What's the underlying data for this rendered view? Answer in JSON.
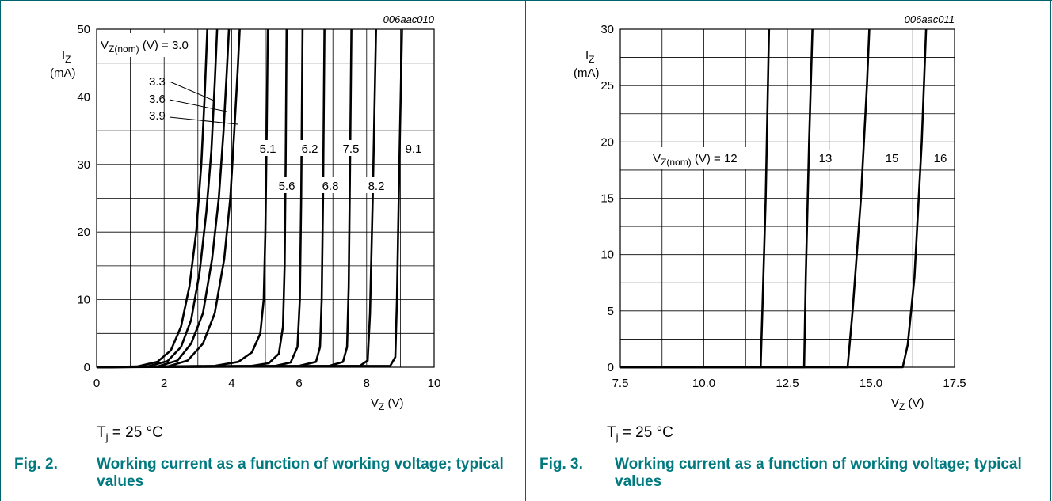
{
  "figures": [
    {
      "code": "006aac010",
      "ylabel": "I",
      "ylabel_sub": "Z",
      "yunit": "(mA)",
      "xlabel": "V",
      "xlabel_sub": "Z",
      "xunit": "(V)",
      "yticks": [
        "0",
        "10",
        "20",
        "30",
        "40",
        "50"
      ],
      "xticks": [
        "0",
        "2",
        "4",
        "6",
        "8",
        "10"
      ],
      "series_label_main": "V",
      "series_label_sub": "Z(nom)",
      "series_label_rest": " (V) = 3.0",
      "curve_labels": [
        "3.3",
        "3.6",
        "3.9",
        "5.1",
        "5.6",
        "6.2",
        "6.8",
        "7.5",
        "8.2",
        "9.1"
      ],
      "condition": "T",
      "condition_sub": "j",
      "condition_rest": " = 25 °C",
      "caption_num": "Fig. 2.",
      "caption_title": "Working current as a function of working voltage; typical values"
    },
    {
      "code": "006aac011",
      "ylabel": "I",
      "ylabel_sub": "Z",
      "yunit": "(mA)",
      "xlabel": "V",
      "xlabel_sub": "Z",
      "xunit": "(V)",
      "yticks": [
        "0",
        "5",
        "10",
        "15",
        "20",
        "25",
        "30"
      ],
      "xticks": [
        "7.5",
        "10.0",
        "12.5",
        "15.0",
        "17.5"
      ],
      "series_label_main": "V",
      "series_label_sub": "Z(nom)",
      "series_label_rest": " (V) = 12",
      "curve_labels": [
        "13",
        "15",
        "16"
      ],
      "condition": "T",
      "condition_sub": "j",
      "condition_rest": " = 25 °C",
      "caption_num": "Fig. 3.",
      "caption_title": "Working current as a function of working voltage; typical values"
    }
  ],
  "chart_data": [
    {
      "type": "line",
      "xlabel": "VZ (V)",
      "ylabel": "IZ (mA)",
      "xlim": [
        0,
        10
      ],
      "ylim": [
        0,
        50
      ],
      "grid": true,
      "series": [
        {
          "name": "3.0",
          "points": [
            [
              0,
              0
            ],
            [
              1.2,
              0.1
            ],
            [
              1.8,
              0.8
            ],
            [
              2.2,
              2.5
            ],
            [
              2.5,
              6
            ],
            [
              2.75,
              12
            ],
            [
              2.95,
              20
            ],
            [
              3.1,
              30
            ],
            [
              3.2,
              40
            ],
            [
              3.28,
              50
            ]
          ]
        },
        {
          "name": "3.3",
          "points": [
            [
              0,
              0
            ],
            [
              1.5,
              0.1
            ],
            [
              2.1,
              0.9
            ],
            [
              2.5,
              3
            ],
            [
              2.8,
              7
            ],
            [
              3.05,
              14
            ],
            [
              3.25,
              23
            ],
            [
              3.4,
              32
            ],
            [
              3.5,
              42
            ],
            [
              3.57,
              50
            ]
          ]
        },
        {
          "name": "3.6",
          "points": [
            [
              0,
              0
            ],
            [
              1.8,
              0.1
            ],
            [
              2.4,
              1
            ],
            [
              2.8,
              3.5
            ],
            [
              3.15,
              8
            ],
            [
              3.42,
              16
            ],
            [
              3.62,
              25
            ],
            [
              3.76,
              35
            ],
            [
              3.86,
              44
            ],
            [
              3.92,
              50
            ]
          ]
        },
        {
          "name": "3.9",
          "points": [
            [
              0,
              0
            ],
            [
              2.1,
              0.1
            ],
            [
              2.7,
              1
            ],
            [
              3.15,
              3.5
            ],
            [
              3.5,
              8
            ],
            [
              3.78,
              16
            ],
            [
              3.96,
              25
            ],
            [
              4.08,
              35
            ],
            [
              4.18,
              44
            ],
            [
              4.24,
              50
            ]
          ]
        },
        {
          "name": "5.1",
          "points": [
            [
              0,
              0
            ],
            [
              3.5,
              0.2
            ],
            [
              4.2,
              0.8
            ],
            [
              4.6,
              2.2
            ],
            [
              4.85,
              5
            ],
            [
              4.95,
              10
            ],
            [
              5.0,
              20
            ],
            [
              5.04,
              35
            ],
            [
              5.07,
              50
            ]
          ]
        },
        {
          "name": "5.6",
          "points": [
            [
              0,
              0
            ],
            [
              4.6,
              0.2
            ],
            [
              5.1,
              0.6
            ],
            [
              5.4,
              2
            ],
            [
              5.52,
              6
            ],
            [
              5.57,
              15
            ],
            [
              5.6,
              30
            ],
            [
              5.63,
              50
            ]
          ]
        },
        {
          "name": "6.2",
          "points": [
            [
              0,
              0
            ],
            [
              5.3,
              0.2
            ],
            [
              5.75,
              0.7
            ],
            [
              5.95,
              3
            ],
            [
              6.02,
              10
            ],
            [
              6.06,
              25
            ],
            [
              6.1,
              50
            ]
          ]
        },
        {
          "name": "6.8",
          "points": [
            [
              0,
              0
            ],
            [
              6.0,
              0.2
            ],
            [
              6.5,
              0.8
            ],
            [
              6.62,
              3
            ],
            [
              6.67,
              10
            ],
            [
              6.71,
              25
            ],
            [
              6.75,
              50
            ]
          ]
        },
        {
          "name": "7.5",
          "points": [
            [
              0,
              0
            ],
            [
              6.9,
              0.2
            ],
            [
              7.3,
              0.8
            ],
            [
              7.42,
              3
            ],
            [
              7.47,
              12
            ],
            [
              7.51,
              30
            ],
            [
              7.55,
              50
            ]
          ]
        },
        {
          "name": "8.2",
          "points": [
            [
              0,
              0
            ],
            [
              7.8,
              0.2
            ],
            [
              8.03,
              1
            ],
            [
              8.1,
              8
            ],
            [
              8.18,
              25
            ],
            [
              8.28,
              50
            ]
          ]
        },
        {
          "name": "9.1",
          "points": [
            [
              0,
              0
            ],
            [
              8.7,
              0.2
            ],
            [
              8.85,
              1.5
            ],
            [
              8.9,
              10
            ],
            [
              8.97,
              30
            ],
            [
              9.05,
              50
            ]
          ]
        }
      ]
    },
    {
      "type": "line",
      "xlabel": "VZ (V)",
      "ylabel": "IZ (mA)",
      "xlim": [
        7.5,
        17.5
      ],
      "ylim": [
        0,
        30
      ],
      "grid": true,
      "series": [
        {
          "name": "12",
          "points": [
            [
              7.5,
              0
            ],
            [
              11.7,
              0
            ],
            [
              11.75,
              5
            ],
            [
              11.85,
              15
            ],
            [
              11.95,
              30
            ]
          ]
        },
        {
          "name": "13",
          "points": [
            [
              7.5,
              0
            ],
            [
              13.0,
              0
            ],
            [
              13.05,
              8
            ],
            [
              13.15,
              20
            ],
            [
              13.25,
              30
            ]
          ]
        },
        {
          "name": "15",
          "points": [
            [
              7.5,
              0
            ],
            [
              14.3,
              0
            ],
            [
              14.45,
              5
            ],
            [
              14.7,
              15
            ],
            [
              14.88,
              25
            ],
            [
              14.95,
              30
            ]
          ]
        },
        {
          "name": "16",
          "points": [
            [
              7.5,
              0
            ],
            [
              15.95,
              0
            ],
            [
              16.1,
              2
            ],
            [
              16.3,
              8
            ],
            [
              16.52,
              20
            ],
            [
              16.65,
              30
            ]
          ]
        }
      ]
    }
  ]
}
